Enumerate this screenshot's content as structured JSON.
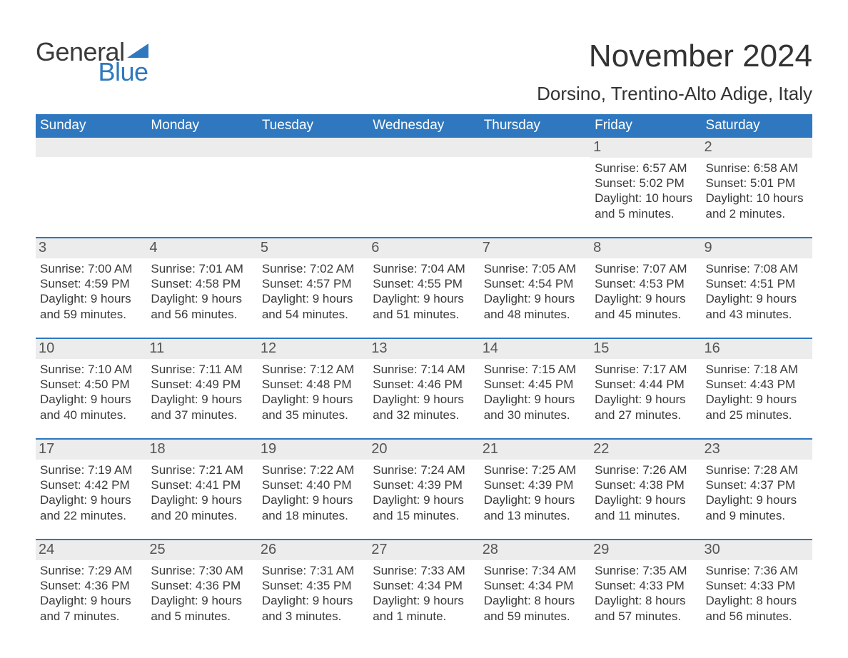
{
  "colors": {
    "brand_blue": "#2f78bf",
    "text": "#3a3a3a",
    "header_text": "#ffffff",
    "daynum_bg": "#ececec",
    "daynum_text": "#555555",
    "page_bg": "#ffffff"
  },
  "typography": {
    "font_family": "Arial, Helvetica, sans-serif",
    "title_fontsize": 44,
    "subtitle_fontsize": 26,
    "dayheader_fontsize": 19,
    "daynum_fontsize": 20,
    "body_fontsize": 17
  },
  "logo": {
    "word1": "General",
    "word2": "Blue"
  },
  "title": "November 2024",
  "subtitle": "Dorsino, Trentino-Alto Adige, Italy",
  "day_headers": [
    "Sunday",
    "Monday",
    "Tuesday",
    "Wednesday",
    "Thursday",
    "Friday",
    "Saturday"
  ],
  "weeks": [
    [
      null,
      null,
      null,
      null,
      null,
      {
        "n": "1",
        "sunrise": "Sunrise: 6:57 AM",
        "sunset": "Sunset: 5:02 PM",
        "daylight1": "Daylight: 10 hours",
        "daylight2": "and 5 minutes."
      },
      {
        "n": "2",
        "sunrise": "Sunrise: 6:58 AM",
        "sunset": "Sunset: 5:01 PM",
        "daylight1": "Daylight: 10 hours",
        "daylight2": "and 2 minutes."
      }
    ],
    [
      {
        "n": "3",
        "sunrise": "Sunrise: 7:00 AM",
        "sunset": "Sunset: 4:59 PM",
        "daylight1": "Daylight: 9 hours",
        "daylight2": "and 59 minutes."
      },
      {
        "n": "4",
        "sunrise": "Sunrise: 7:01 AM",
        "sunset": "Sunset: 4:58 PM",
        "daylight1": "Daylight: 9 hours",
        "daylight2": "and 56 minutes."
      },
      {
        "n": "5",
        "sunrise": "Sunrise: 7:02 AM",
        "sunset": "Sunset: 4:57 PM",
        "daylight1": "Daylight: 9 hours",
        "daylight2": "and 54 minutes."
      },
      {
        "n": "6",
        "sunrise": "Sunrise: 7:04 AM",
        "sunset": "Sunset: 4:55 PM",
        "daylight1": "Daylight: 9 hours",
        "daylight2": "and 51 minutes."
      },
      {
        "n": "7",
        "sunrise": "Sunrise: 7:05 AM",
        "sunset": "Sunset: 4:54 PM",
        "daylight1": "Daylight: 9 hours",
        "daylight2": "and 48 minutes."
      },
      {
        "n": "8",
        "sunrise": "Sunrise: 7:07 AM",
        "sunset": "Sunset: 4:53 PM",
        "daylight1": "Daylight: 9 hours",
        "daylight2": "and 45 minutes."
      },
      {
        "n": "9",
        "sunrise": "Sunrise: 7:08 AM",
        "sunset": "Sunset: 4:51 PM",
        "daylight1": "Daylight: 9 hours",
        "daylight2": "and 43 minutes."
      }
    ],
    [
      {
        "n": "10",
        "sunrise": "Sunrise: 7:10 AM",
        "sunset": "Sunset: 4:50 PM",
        "daylight1": "Daylight: 9 hours",
        "daylight2": "and 40 minutes."
      },
      {
        "n": "11",
        "sunrise": "Sunrise: 7:11 AM",
        "sunset": "Sunset: 4:49 PM",
        "daylight1": "Daylight: 9 hours",
        "daylight2": "and 37 minutes."
      },
      {
        "n": "12",
        "sunrise": "Sunrise: 7:12 AM",
        "sunset": "Sunset: 4:48 PM",
        "daylight1": "Daylight: 9 hours",
        "daylight2": "and 35 minutes."
      },
      {
        "n": "13",
        "sunrise": "Sunrise: 7:14 AM",
        "sunset": "Sunset: 4:46 PM",
        "daylight1": "Daylight: 9 hours",
        "daylight2": "and 32 minutes."
      },
      {
        "n": "14",
        "sunrise": "Sunrise: 7:15 AM",
        "sunset": "Sunset: 4:45 PM",
        "daylight1": "Daylight: 9 hours",
        "daylight2": "and 30 minutes."
      },
      {
        "n": "15",
        "sunrise": "Sunrise: 7:17 AM",
        "sunset": "Sunset: 4:44 PM",
        "daylight1": "Daylight: 9 hours",
        "daylight2": "and 27 minutes."
      },
      {
        "n": "16",
        "sunrise": "Sunrise: 7:18 AM",
        "sunset": "Sunset: 4:43 PM",
        "daylight1": "Daylight: 9 hours",
        "daylight2": "and 25 minutes."
      }
    ],
    [
      {
        "n": "17",
        "sunrise": "Sunrise: 7:19 AM",
        "sunset": "Sunset: 4:42 PM",
        "daylight1": "Daylight: 9 hours",
        "daylight2": "and 22 minutes."
      },
      {
        "n": "18",
        "sunrise": "Sunrise: 7:21 AM",
        "sunset": "Sunset: 4:41 PM",
        "daylight1": "Daylight: 9 hours",
        "daylight2": "and 20 minutes."
      },
      {
        "n": "19",
        "sunrise": "Sunrise: 7:22 AM",
        "sunset": "Sunset: 4:40 PM",
        "daylight1": "Daylight: 9 hours",
        "daylight2": "and 18 minutes."
      },
      {
        "n": "20",
        "sunrise": "Sunrise: 7:24 AM",
        "sunset": "Sunset: 4:39 PM",
        "daylight1": "Daylight: 9 hours",
        "daylight2": "and 15 minutes."
      },
      {
        "n": "21",
        "sunrise": "Sunrise: 7:25 AM",
        "sunset": "Sunset: 4:39 PM",
        "daylight1": "Daylight: 9 hours",
        "daylight2": "and 13 minutes."
      },
      {
        "n": "22",
        "sunrise": "Sunrise: 7:26 AM",
        "sunset": "Sunset: 4:38 PM",
        "daylight1": "Daylight: 9 hours",
        "daylight2": "and 11 minutes."
      },
      {
        "n": "23",
        "sunrise": "Sunrise: 7:28 AM",
        "sunset": "Sunset: 4:37 PM",
        "daylight1": "Daylight: 9 hours",
        "daylight2": "and 9 minutes."
      }
    ],
    [
      {
        "n": "24",
        "sunrise": "Sunrise: 7:29 AM",
        "sunset": "Sunset: 4:36 PM",
        "daylight1": "Daylight: 9 hours",
        "daylight2": "and 7 minutes."
      },
      {
        "n": "25",
        "sunrise": "Sunrise: 7:30 AM",
        "sunset": "Sunset: 4:36 PM",
        "daylight1": "Daylight: 9 hours",
        "daylight2": "and 5 minutes."
      },
      {
        "n": "26",
        "sunrise": "Sunrise: 7:31 AM",
        "sunset": "Sunset: 4:35 PM",
        "daylight1": "Daylight: 9 hours",
        "daylight2": "and 3 minutes."
      },
      {
        "n": "27",
        "sunrise": "Sunrise: 7:33 AM",
        "sunset": "Sunset: 4:34 PM",
        "daylight1": "Daylight: 9 hours",
        "daylight2": "and 1 minute."
      },
      {
        "n": "28",
        "sunrise": "Sunrise: 7:34 AM",
        "sunset": "Sunset: 4:34 PM",
        "daylight1": "Daylight: 8 hours",
        "daylight2": "and 59 minutes."
      },
      {
        "n": "29",
        "sunrise": "Sunrise: 7:35 AM",
        "sunset": "Sunset: 4:33 PM",
        "daylight1": "Daylight: 8 hours",
        "daylight2": "and 57 minutes."
      },
      {
        "n": "30",
        "sunrise": "Sunrise: 7:36 AM",
        "sunset": "Sunset: 4:33 PM",
        "daylight1": "Daylight: 8 hours",
        "daylight2": "and 56 minutes."
      }
    ]
  ]
}
